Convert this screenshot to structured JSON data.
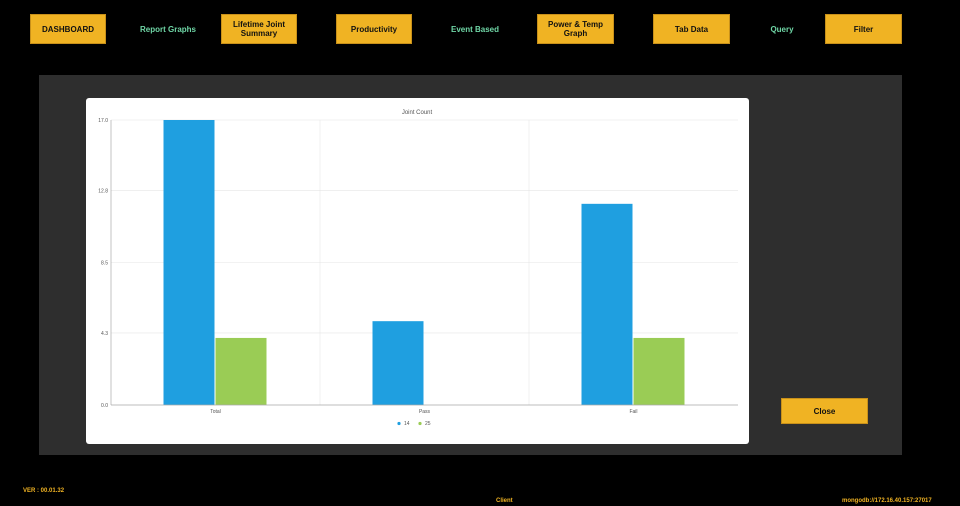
{
  "nav": {
    "dashboard": "DASHBOARD",
    "report_graphs": "Report Graphs",
    "lifetime_joint_summary": "Lifetime Joint Summary",
    "productivity": "Productivity",
    "event_based": "Event Based",
    "power_temp_graph": "Power & Temp Graph",
    "tab_data": "Tab Data",
    "query": "Query",
    "filter": "Filter"
  },
  "chart_data": {
    "type": "bar",
    "title": "Joint Count",
    "xlabel": "",
    "ylabel": "",
    "categories": [
      "Total",
      "Pass",
      "Fail"
    ],
    "series": [
      {
        "name": "14",
        "color": "#1f9fe0",
        "values": [
          17,
          5,
          12
        ]
      },
      {
        "name": "25",
        "color": "#9acc55",
        "values": [
          4,
          0,
          4
        ]
      }
    ],
    "ylim": [
      0,
      17
    ],
    "yticks": [
      "0.0",
      "4.3",
      "8.5",
      "12.8",
      "17.0"
    ],
    "grid": true,
    "legend_position": "bottom-center"
  },
  "close_label": "Close",
  "footer": {
    "version": "VER : 00.01.32",
    "client": "Client",
    "connection": "mongodb://172.16.40.157:27017"
  },
  "colors": {
    "accent": "#f0b323",
    "link": "#6fd6a6",
    "panel": "#2e2e2e"
  }
}
